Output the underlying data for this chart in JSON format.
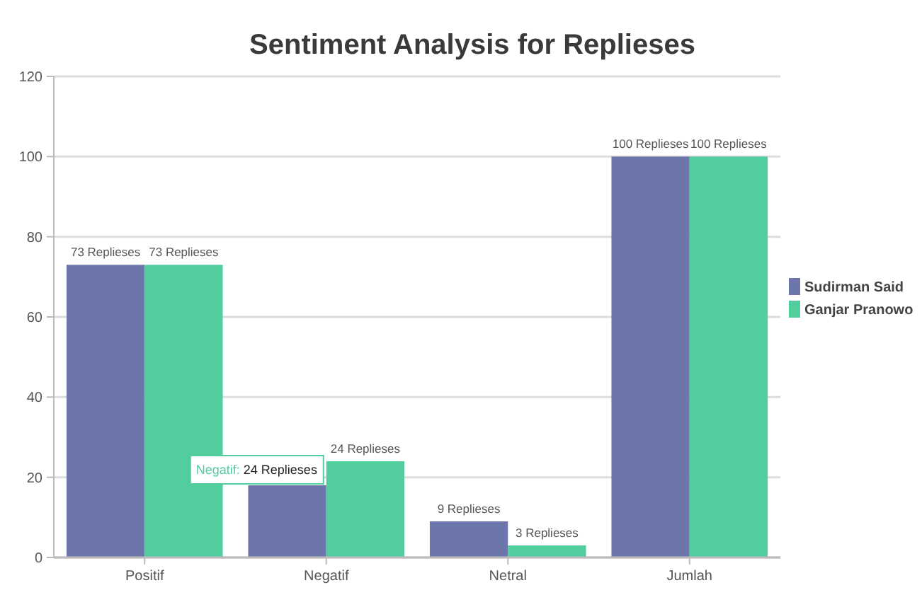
{
  "chart_data": {
    "type": "bar",
    "title": "Sentiment Analysis for Replieses",
    "categories": [
      "Positif",
      "Negatif",
      "Netral",
      "Jumlah"
    ],
    "series": [
      {
        "name": "Sudirman Said",
        "color": "#6c76ab",
        "values": [
          73,
          18,
          9,
          100
        ],
        "value_labels": [
          "73 Replieses",
          null,
          "9 Replieses",
          "100 Replieses"
        ]
      },
      {
        "name": "Ganjar Pranowo",
        "color": "#51cd9e",
        "values": [
          73,
          24,
          3,
          100
        ],
        "value_labels": [
          "73 Replieses",
          "24 Replieses",
          "3 Replieses",
          "100 Replieses"
        ]
      }
    ],
    "ylim": [
      0,
      120
    ],
    "yticks": [
      0,
      20,
      40,
      60,
      80,
      100,
      120
    ],
    "grid": "y",
    "legend": "right",
    "annotations": [
      {
        "text": "Negatif: 24 Replieses",
        "x": "Negatif",
        "y": 24
      }
    ]
  }
}
